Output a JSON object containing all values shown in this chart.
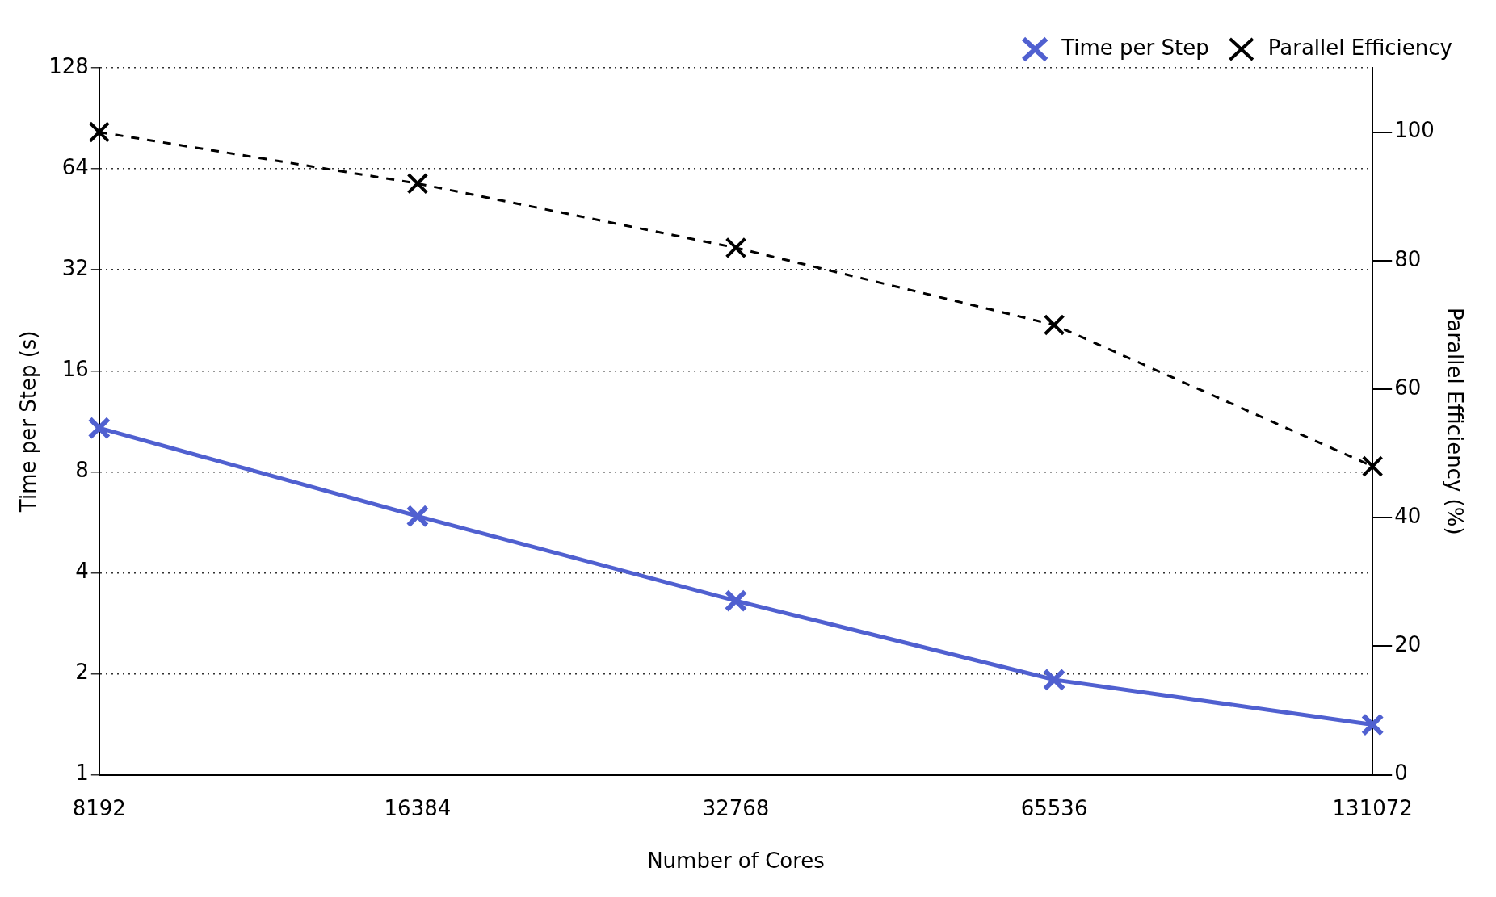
{
  "chart_data": {
    "type": "line",
    "xlabel": "Number of Cores",
    "ylabel": "Time per Step (s)",
    "y2label": "Parallel Efficiency (%)",
    "categories": [
      "8192",
      "16384",
      "32768",
      "65536",
      "131072"
    ],
    "series": [
      {
        "name": "Time per Step",
        "color": "#5060d0",
        "values": [
          10.8,
          5.9,
          3.3,
          1.92,
          1.41
        ],
        "marker": "cross",
        "line_style": "solid"
      },
      {
        "name": "Parallel Efficiency",
        "color": "#000000",
        "values": [
          100,
          92,
          82,
          70,
          48
        ],
        "axis": "y2",
        "marker": "cross",
        "line_style": "dashed"
      }
    ],
    "log": "y",
    "ylim": [
      1,
      128
    ],
    "yticks": [
      1,
      2,
      4,
      8,
      16,
      32,
      64,
      128
    ],
    "y2lim": [
      0,
      110
    ],
    "y2ticks": [
      0,
      20,
      40,
      60,
      80,
      100
    ],
    "grid": "y",
    "legend": "top right"
  }
}
